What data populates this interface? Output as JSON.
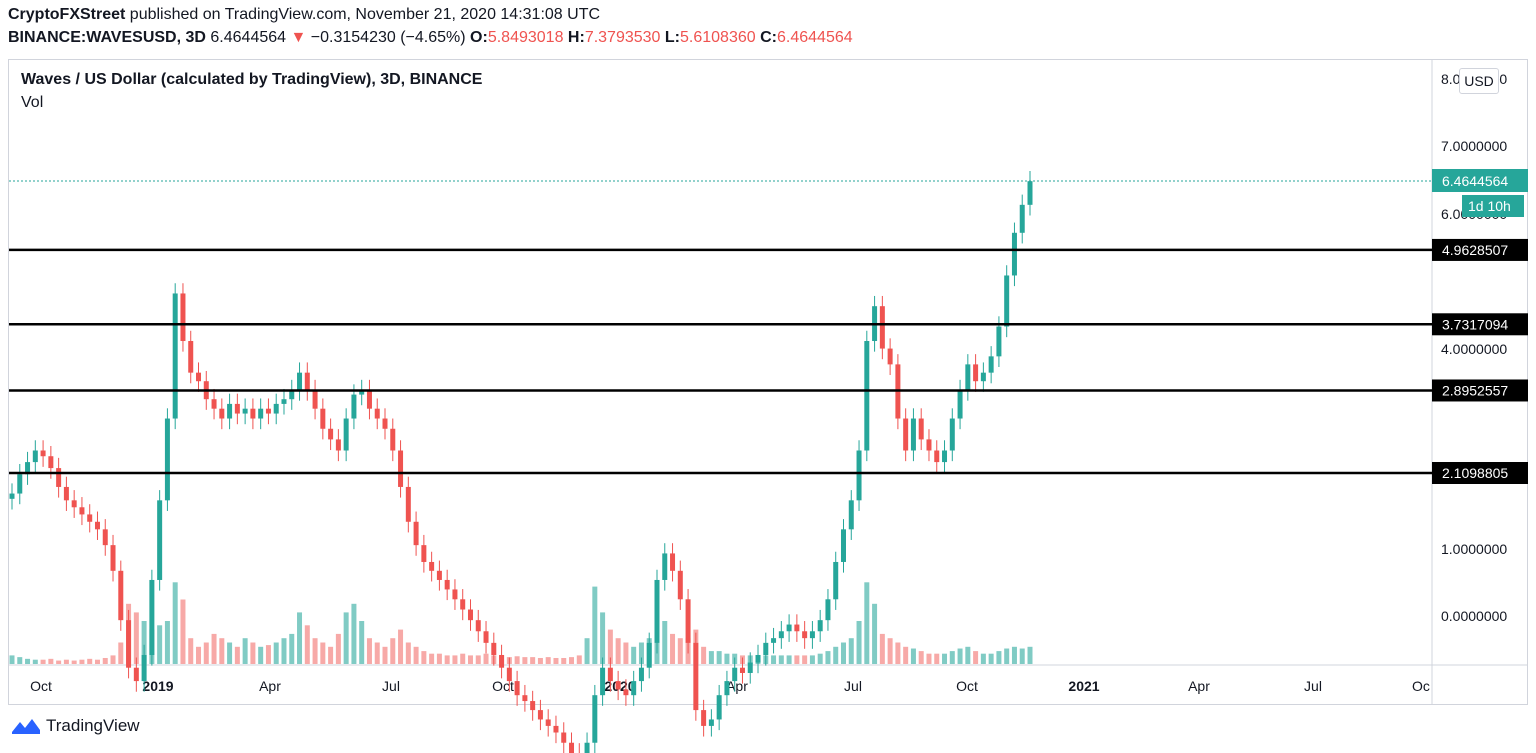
{
  "header": {
    "author": "CryptoFXStreet",
    "published": " published on TradingView.com, November 21, 2020 14:31:08 UTC",
    "symbol": "BINANCE:WAVESUSD, 3D",
    "last": "6.4644564",
    "arrow": "▼",
    "change": "−0.3154230 (−4.65%)",
    "o_label": "O:",
    "o_value": "5.8493018",
    "h_label": "H:",
    "h_value": "7.3793530",
    "l_label": "L:",
    "l_value": "5.6108360",
    "c_label": "C:",
    "c_value": "6.4644564"
  },
  "pane": {
    "title": "Waves / US Dollar (calculated by TradingView), 3D, BINANCE",
    "volume_label": "Vol",
    "currency": "USD"
  },
  "footer": {
    "brand": "TradingView"
  },
  "colors": {
    "up": "#26a69a",
    "down": "#ef5350",
    "up_vol": "#80cbc4",
    "down_vol": "#f7a9a7",
    "level_line": "#000000",
    "last_price_line": "#26a69a"
  },
  "chart_data": {
    "type": "candlestick",
    "y_scale": "log",
    "y_ticks": [
      "8.0000000",
      "7.0000000",
      "6.0000000",
      "4.0000000",
      "1.0000000",
      "0.0000000"
    ],
    "x_ticks": [
      {
        "label": "Oct",
        "bold": false
      },
      {
        "label": "2019",
        "bold": true
      },
      {
        "label": "Apr",
        "bold": false
      },
      {
        "label": "Jul",
        "bold": false
      },
      {
        "label": "Oct",
        "bold": false
      },
      {
        "label": "2020",
        "bold": true
      },
      {
        "label": "Apr",
        "bold": false
      },
      {
        "label": "Jul",
        "bold": false
      },
      {
        "label": "Oct",
        "bold": false
      },
      {
        "label": "2021",
        "bold": true
      },
      {
        "label": "Apr",
        "bold": false
      },
      {
        "label": "Jul",
        "bold": false
      },
      {
        "label": "Oc",
        "bold": false
      }
    ],
    "horizontal_levels": [
      {
        "value": 4.9628507,
        "label": "4.9628507"
      },
      {
        "value": 3.7317094,
        "label": "3.7317094"
      },
      {
        "value": 2.8952557,
        "label": "2.8952557"
      },
      {
        "value": 2.1098805,
        "label": "2.1098805"
      }
    ],
    "last_price": {
      "value": 6.4644564,
      "label": "6.4644564",
      "countdown": "1d 10h"
    },
    "series_close": [
      1.95,
      2.1,
      2.2,
      2.3,
      2.25,
      2.15,
      2.0,
      1.9,
      1.85,
      1.8,
      1.75,
      1.7,
      1.6,
      1.45,
      1.2,
      1.0,
      0.95,
      1.05,
      1.4,
      1.9,
      2.6,
      4.2,
      3.5,
      3.1,
      3.0,
      2.8,
      2.7,
      2.6,
      2.75,
      2.65,
      2.7,
      2.6,
      2.7,
      2.65,
      2.75,
      2.8,
      2.9,
      3.1,
      2.9,
      2.7,
      2.5,
      2.4,
      2.3,
      2.6,
      2.85,
      2.9,
      2.7,
      2.6,
      2.5,
      2.3,
      2.0,
      1.75,
      1.6,
      1.5,
      1.45,
      1.4,
      1.35,
      1.3,
      1.25,
      1.2,
      1.15,
      1.1,
      1.05,
      1.0,
      0.95,
      0.9,
      0.88,
      0.85,
      0.82,
      0.8,
      0.78,
      0.75,
      0.72,
      0.7,
      0.75,
      0.9,
      1.0,
      0.95,
      0.92,
      0.9,
      0.95,
      1.0,
      1.1,
      1.4,
      1.55,
      1.45,
      1.3,
      1.1,
      0.85,
      0.8,
      0.82,
      0.9,
      0.95,
      1.0,
      0.98,
      1.02,
      1.05,
      1.1,
      1.12,
      1.15,
      1.18,
      1.15,
      1.12,
      1.15,
      1.2,
      1.3,
      1.5,
      1.7,
      1.9,
      2.3,
      3.5,
      4.0,
      3.4,
      3.2,
      2.6,
      2.3,
      2.6,
      2.4,
      2.3,
      2.2,
      2.3,
      2.6,
      2.9,
      3.2,
      3.0,
      3.1,
      3.3,
      3.7,
      4.5,
      5.3,
      5.9,
      6.46
    ],
    "series_volume_relative": [
      0.1,
      0.08,
      0.06,
      0.05,
      0.05,
      0.06,
      0.04,
      0.05,
      0.04,
      0.05,
      0.06,
      0.05,
      0.07,
      0.1,
      0.25,
      0.7,
      0.6,
      0.5,
      0.4,
      0.45,
      0.5,
      0.95,
      0.75,
      0.3,
      0.2,
      0.25,
      0.35,
      0.3,
      0.25,
      0.2,
      0.3,
      0.25,
      0.2,
      0.22,
      0.25,
      0.3,
      0.35,
      0.6,
      0.45,
      0.3,
      0.25,
      0.2,
      0.35,
      0.6,
      0.7,
      0.5,
      0.3,
      0.25,
      0.2,
      0.3,
      0.4,
      0.25,
      0.2,
      0.15,
      0.12,
      0.12,
      0.1,
      0.1,
      0.12,
      0.1,
      0.1,
      0.12,
      0.1,
      0.1,
      0.08,
      0.09,
      0.08,
      0.08,
      0.07,
      0.08,
      0.07,
      0.07,
      0.08,
      0.1,
      0.3,
      0.9,
      0.6,
      0.4,
      0.3,
      0.25,
      0.2,
      0.25,
      0.3,
      0.6,
      0.5,
      0.35,
      0.3,
      0.3,
      0.4,
      0.2,
      0.15,
      0.15,
      0.12,
      0.12,
      0.1,
      0.1,
      0.1,
      0.1,
      0.1,
      0.1,
      0.1,
      0.1,
      0.1,
      0.1,
      0.12,
      0.15,
      0.2,
      0.25,
      0.3,
      0.5,
      0.95,
      0.7,
      0.35,
      0.3,
      0.25,
      0.2,
      0.18,
      0.15,
      0.12,
      0.12,
      0.12,
      0.15,
      0.18,
      0.2,
      0.15,
      0.12,
      0.12,
      0.15,
      0.18,
      0.2,
      0.18,
      0.2
    ]
  }
}
